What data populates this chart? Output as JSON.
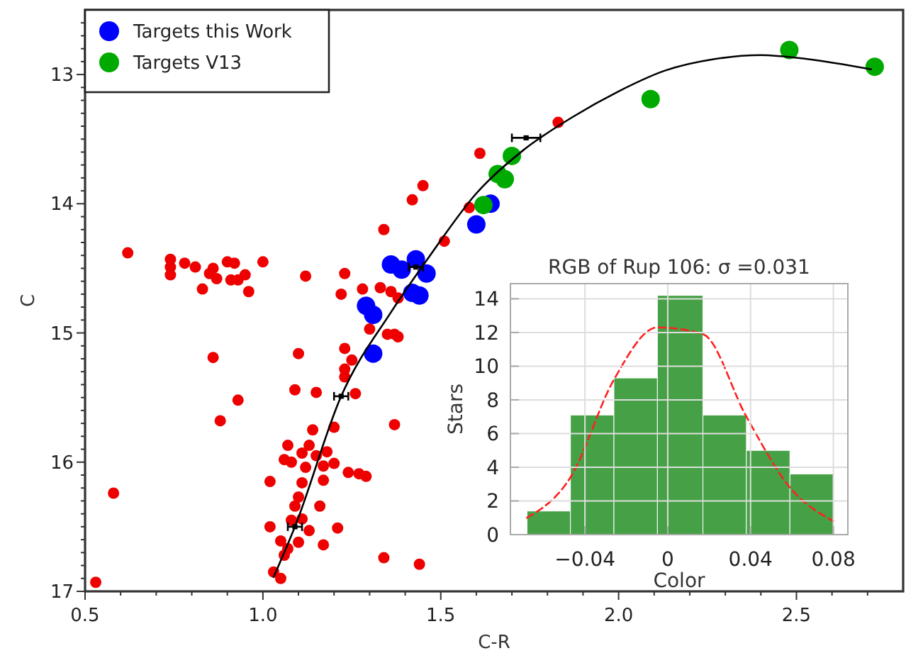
{
  "chart_data": [
    {
      "type": "scatter",
      "xlabel": "C-R",
      "ylabel": "C",
      "xlim": [
        0.5,
        2.8
      ],
      "ylim": [
        17,
        12.5
      ],
      "legend": "top left",
      "xticks": [
        0.5,
        {
          "value": 0.6,
          "label": null
        },
        {
          "value": 0.7,
          "label": null
        },
        {
          "value": 0.8,
          "label": null
        },
        {
          "value": 0.9,
          "label": null
        },
        {
          "value": 1,
          "label": "1.0"
        },
        {
          "value": 1.1,
          "label": null
        },
        {
          "value": 1.2,
          "label": null
        },
        {
          "value": 1.3,
          "label": null
        },
        {
          "value": 1.4,
          "label": null
        },
        1.5,
        {
          "value": 1.6,
          "label": null
        },
        {
          "value": 1.7,
          "label": null
        },
        {
          "value": 1.8,
          "label": null
        },
        {
          "value": 1.9,
          "label": null
        },
        {
          "value": 2,
          "label": "2.0"
        },
        {
          "value": 2.1,
          "label": null
        },
        {
          "value": 2.2,
          "label": null
        },
        {
          "value": 2.3,
          "label": null
        },
        {
          "value": 2.4,
          "label": null
        },
        2.5,
        {
          "value": 2.6,
          "label": null
        },
        {
          "value": 2.7,
          "label": null
        }
      ],
      "yticks": [
        {
          "value": 12.6,
          "label": null
        },
        {
          "value": 12.7,
          "label": null
        },
        {
          "value": 12.8,
          "label": null
        },
        {
          "value": 12.9,
          "label": null
        },
        13,
        {
          "value": 13.1,
          "label": null
        },
        {
          "value": 13.2,
          "label": null
        },
        {
          "value": 13.3,
          "label": null
        },
        {
          "value": 13.4,
          "label": null
        },
        {
          "value": 13.5,
          "label": null
        },
        {
          "value": 13.6,
          "label": null
        },
        {
          "value": 13.7,
          "label": null
        },
        {
          "value": 13.8,
          "label": null
        },
        {
          "value": 13.9,
          "label": null
        },
        14,
        {
          "value": 14.1,
          "label": null
        },
        {
          "value": 14.2,
          "label": null
        },
        {
          "value": 14.3,
          "label": null
        },
        {
          "value": 14.4,
          "label": null
        },
        {
          "value": 14.5,
          "label": null
        },
        {
          "value": 14.6,
          "label": null
        },
        {
          "value": 14.7,
          "label": null
        },
        {
          "value": 14.8,
          "label": null
        },
        {
          "value": 14.9,
          "label": null
        },
        15,
        {
          "value": 15.1,
          "label": null
        },
        {
          "value": 15.2,
          "label": null
        },
        {
          "value": 15.3,
          "label": null
        },
        {
          "value": 15.4,
          "label": null
        },
        {
          "value": 15.5,
          "label": null
        },
        {
          "value": 15.6,
          "label": null
        },
        {
          "value": 15.7,
          "label": null
        },
        {
          "value": 15.8,
          "label": null
        },
        {
          "value": 15.9,
          "label": null
        },
        16,
        {
          "value": 16.1,
          "label": null
        },
        {
          "value": 16.2,
          "label": null
        },
        {
          "value": 16.3,
          "label": null
        },
        {
          "value": 16.4,
          "label": null
        },
        {
          "value": 16.5,
          "label": null
        },
        {
          "value": 16.6,
          "label": null
        },
        {
          "value": 16.7,
          "label": null
        },
        {
          "value": 16.8,
          "label": null
        },
        {
          "value": 16.9,
          "label": null
        },
        17
      ],
      "series": [
        {
          "color": "#ee0000",
          "x": [
            0.62,
            0.74,
            0.74,
            0.74,
            0.78,
            0.81,
            0.83,
            0.85,
            0.86,
            0.87,
            0.9,
            0.92,
            0.91,
            0.93,
            0.95,
            0.96,
            1.0,
            1.12,
            1.23,
            1.22,
            1.28,
            1.33,
            1.36,
            1.38,
            1.34,
            1.42,
            1.45,
            1.51,
            1.58,
            1.61,
            1.83,
            0.53,
            0.58,
            0.86,
            0.88,
            0.93,
            1.1,
            1.09,
            1.15,
            1.23,
            1.25,
            1.23,
            1.23,
            1.3,
            1.26,
            1.35,
            1.37,
            1.38,
            1.37,
            1.14,
            1.2,
            1.07,
            1.11,
            1.13,
            1.06,
            1.08,
            1.15,
            1.18,
            1.2,
            1.12,
            1.17,
            1.24,
            1.27,
            1.29,
            1.02,
            1.17,
            1.11,
            1.1,
            1.09,
            1.16,
            1.08,
            1.11,
            1.02,
            1.13,
            1.21,
            1.05,
            1.1,
            1.17,
            1.07,
            1.06,
            1.34,
            1.44,
            1.03,
            1.05
          ],
          "values": [
            14.38,
            14.43,
            14.49,
            14.55,
            14.46,
            14.49,
            14.66,
            14.54,
            14.5,
            14.58,
            14.45,
            14.46,
            14.59,
            14.59,
            14.55,
            14.68,
            14.45,
            14.56,
            14.54,
            14.7,
            14.66,
            14.65,
            14.68,
            14.73,
            14.2,
            13.97,
            13.86,
            14.29,
            14.03,
            13.61,
            13.37,
            16.93,
            16.24,
            15.19,
            15.68,
            15.52,
            15.16,
            15.44,
            15.46,
            15.12,
            15.21,
            15.28,
            15.34,
            14.97,
            15.47,
            15.01,
            15.01,
            15.03,
            15.71,
            15.75,
            15.73,
            15.87,
            15.93,
            15.87,
            15.98,
            16.0,
            15.95,
            15.92,
            16.01,
            16.04,
            16.03,
            16.08,
            16.09,
            16.11,
            16.15,
            16.14,
            16.16,
            16.27,
            16.34,
            16.34,
            16.45,
            16.44,
            16.5,
            16.53,
            16.51,
            16.61,
            16.62,
            16.64,
            16.67,
            16.72,
            16.74,
            16.79,
            16.85,
            16.9
          ]
        },
        {
          "name": "Targets this Work",
          "color": "#0000ff",
          "x": [
            1.36,
            1.39,
            1.43,
            1.46,
            1.42,
            1.44,
            1.29,
            1.31,
            1.31,
            1.6,
            1.64
          ],
          "values": [
            14.47,
            14.51,
            14.43,
            14.54,
            14.69,
            14.71,
            14.79,
            14.86,
            15.16,
            14.16,
            14.0
          ]
        },
        {
          "name": "Targets V13",
          "color": "#00aa00",
          "x": [
            1.62,
            1.66,
            1.68,
            1.7,
            2.09,
            2.48,
            2.72
          ],
          "values": [
            14.01,
            13.77,
            13.81,
            13.63,
            13.19,
            12.81,
            12.94
          ]
        },
        {
          "type": "line",
          "color": "#000000",
          "x": [
            1.03,
            1.09,
            1.22,
            1.36,
            1.47,
            1.6,
            1.73,
            1.87,
            2.0,
            2.13,
            2.27,
            2.4,
            2.53,
            2.71
          ],
          "values": [
            16.89,
            16.5,
            15.49,
            14.84,
            14.4,
            13.92,
            13.59,
            13.33,
            13.13,
            12.97,
            12.88,
            12.85,
            12.88,
            12.96
          ]
        },
        {
          "marker": "square",
          "color": "#000000",
          "x": [
            1.09,
            1.22,
            1.43,
            1.74
          ],
          "values": [
            16.5,
            15.49,
            14.49,
            13.49
          ],
          "xerrors": [
            0.02,
            0.02,
            0.02,
            0.04
          ]
        }
      ]
    },
    {
      "type": "histogram",
      "title": "RGB of Rup 106: σ =0.031",
      "xlabel": "Color",
      "ylabel": "Stars",
      "grid": true,
      "xlim": [
        -0.076,
        0.087
      ],
      "ylim": [
        0,
        14.9
      ],
      "xticks": [
        {
          "value": -0.04,
          "label": "−0.04"
        },
        0,
        0.04,
        0.08
      ],
      "yticks": [
        0,
        2,
        4,
        6,
        8,
        10,
        12,
        14
      ],
      "bins": [
        -0.068,
        -0.047,
        -0.026,
        -0.005,
        0.017,
        0.038,
        0.059,
        0.08
      ],
      "series": [
        {
          "color": "#3c9c3c",
          "values": [
            1.4,
            7.1,
            9.3,
            14.2,
            7.1,
            5.0,
            3.6
          ]
        },
        {
          "type": "line",
          "color": "#ff2020",
          "line_style": "dashed",
          "x": [
            -0.068,
            -0.047,
            -0.026,
            -0.005,
            0.017,
            0.038,
            0.059,
            0.08
          ],
          "values": [
            1.0,
            3.4,
            9.2,
            12.3,
            11.9,
            7.0,
            2.8,
            0.8
          ]
        }
      ]
    }
  ]
}
